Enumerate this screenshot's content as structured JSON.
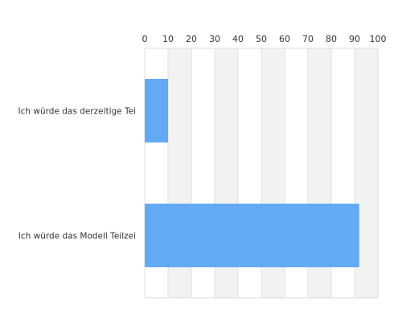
{
  "chart_data": {
    "type": "bar",
    "orientation": "horizontal",
    "categories": [
      "Ich würde das derzeitige Tei",
      "Ich würde das Modell Teilzei"
    ],
    "values": [
      10,
      92
    ],
    "xlim": [
      0,
      100
    ],
    "x_ticks": [
      "0",
      "10",
      "20",
      "30",
      "40",
      "50",
      "60",
      "70",
      "80",
      "90",
      "100"
    ],
    "axis_position": "top",
    "grid": "alternating vertical bands",
    "title": "",
    "xlabel": "",
    "ylabel": ""
  },
  "colors": {
    "bar": "#63aaf5",
    "band_light": "#ffffff",
    "band_dark": "#f2f2f2",
    "grid_line": "#e2e2e2",
    "frame": "#dddddd",
    "text": "#333333"
  }
}
